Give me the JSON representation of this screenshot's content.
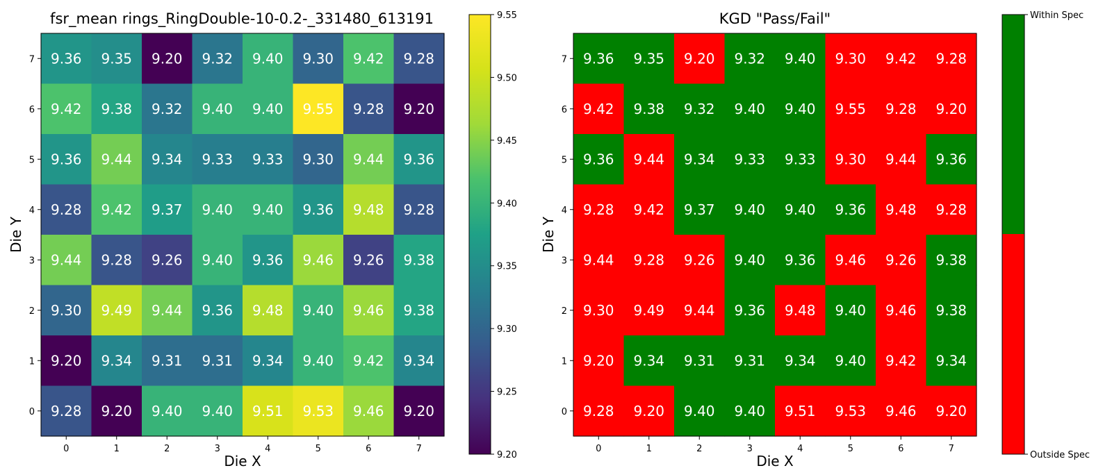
{
  "chart_data": [
    {
      "type": "heatmap",
      "title": "fsr_mean rings_RingDouble-10-0.2-_331480_613191",
      "xlabel": "Die X",
      "ylabel": "Die Y",
      "x_ticks": [
        "0",
        "1",
        "2",
        "3",
        "4",
        "5",
        "6",
        "7"
      ],
      "y_ticks": [
        "0",
        "1",
        "2",
        "3",
        "4",
        "5",
        "6",
        "7"
      ],
      "colormap": "viridis",
      "zlim": [
        9.2,
        9.55
      ],
      "colorbar_ticks": [
        "9.20",
        "9.25",
        "9.30",
        "9.35",
        "9.40",
        "9.45",
        "9.50",
        "9.55"
      ],
      "rows_top_to_bottom": [
        [
          "9.36",
          "9.35",
          "9.20",
          "9.32",
          "9.40",
          "9.30",
          "9.42",
          "9.28"
        ],
        [
          "9.42",
          "9.38",
          "9.32",
          "9.40",
          "9.40",
          "9.55",
          "9.28",
          "9.20"
        ],
        [
          "9.36",
          "9.44",
          "9.34",
          "9.33",
          "9.33",
          "9.30",
          "9.44",
          "9.36"
        ],
        [
          "9.28",
          "9.42",
          "9.37",
          "9.40",
          "9.40",
          "9.36",
          "9.48",
          "9.28"
        ],
        [
          "9.44",
          "9.28",
          "9.26",
          "9.40",
          "9.36",
          "9.46",
          "9.26",
          "9.38"
        ],
        [
          "9.30",
          "9.49",
          "9.44",
          "9.36",
          "9.48",
          "9.40",
          "9.46",
          "9.38"
        ],
        [
          "9.20",
          "9.34",
          "9.31",
          "9.31",
          "9.34",
          "9.40",
          "9.42",
          "9.34"
        ],
        [
          "9.28",
          "9.20",
          "9.40",
          "9.40",
          "9.51",
          "9.53",
          "9.46",
          "9.20"
        ]
      ]
    },
    {
      "type": "heatmap",
      "title": "KGD \"Pass/Fail\"",
      "xlabel": "Die X",
      "ylabel": "Die Y",
      "x_ticks": [
        "0",
        "1",
        "2",
        "3",
        "4",
        "5",
        "6",
        "7"
      ],
      "y_ticks": [
        "0",
        "1",
        "2",
        "3",
        "4",
        "5",
        "6",
        "7"
      ],
      "colors": {
        "pass": "#008000",
        "fail": "#ff0000"
      },
      "colorbar_labels": {
        "top": "Within Spec",
        "bottom": "Outside Spec"
      },
      "rows_top_to_bottom": [
        [
          "9.36",
          "9.35",
          "9.20",
          "9.32",
          "9.40",
          "9.30",
          "9.42",
          "9.28"
        ],
        [
          "9.42",
          "9.38",
          "9.32",
          "9.40",
          "9.40",
          "9.55",
          "9.28",
          "9.20"
        ],
        [
          "9.36",
          "9.44",
          "9.34",
          "9.33",
          "9.33",
          "9.30",
          "9.44",
          "9.36"
        ],
        [
          "9.28",
          "9.42",
          "9.37",
          "9.40",
          "9.40",
          "9.36",
          "9.48",
          "9.28"
        ],
        [
          "9.44",
          "9.28",
          "9.26",
          "9.40",
          "9.36",
          "9.46",
          "9.26",
          "9.38"
        ],
        [
          "9.30",
          "9.49",
          "9.44",
          "9.36",
          "9.48",
          "9.40",
          "9.46",
          "9.38"
        ],
        [
          "9.20",
          "9.34",
          "9.31",
          "9.31",
          "9.34",
          "9.40",
          "9.42",
          "9.34"
        ],
        [
          "9.28",
          "9.20",
          "9.40",
          "9.40",
          "9.51",
          "9.53",
          "9.46",
          "9.20"
        ]
      ],
      "pass_rows_top_to_bottom": [
        [
          1,
          1,
          0,
          1,
          1,
          0,
          0,
          0
        ],
        [
          0,
          1,
          1,
          1,
          1,
          0,
          0,
          0
        ],
        [
          1,
          0,
          1,
          1,
          1,
          0,
          0,
          1
        ],
        [
          0,
          0,
          1,
          1,
          1,
          1,
          0,
          0
        ],
        [
          0,
          0,
          0,
          1,
          1,
          0,
          0,
          1
        ],
        [
          0,
          0,
          0,
          1,
          0,
          1,
          0,
          1
        ],
        [
          0,
          1,
          1,
          1,
          1,
          1,
          0,
          1
        ],
        [
          0,
          0,
          1,
          1,
          0,
          0,
          0,
          0
        ]
      ]
    }
  ]
}
